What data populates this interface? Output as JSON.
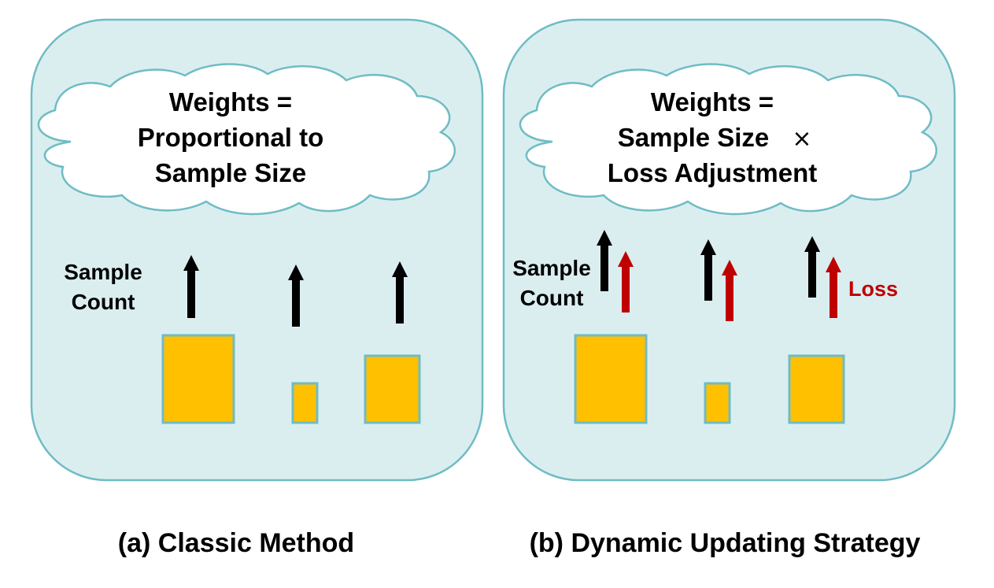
{
  "colors": {
    "panel_fill": "#daeef0",
    "panel_stroke": "#6fbcc4",
    "box_fill": "#ffc000",
    "sample_arrow": "#000000",
    "loss_arrow": "#c00000"
  },
  "panel_a": {
    "cloud_lines": [
      "Weights =",
      "Proportional to",
      "Sample Size"
    ],
    "sample_label_lines": [
      "Sample",
      "Count"
    ],
    "caption": "(a) Classic Method"
  },
  "panel_b": {
    "cloud_lines": [
      "Weights =",
      "Sample Size",
      "Loss Adjustment"
    ],
    "times_symbol": "×",
    "sample_label_lines": [
      "Sample",
      "Count"
    ],
    "loss_label": "Loss",
    "caption": "(b) Dynamic Updating Strategy"
  }
}
